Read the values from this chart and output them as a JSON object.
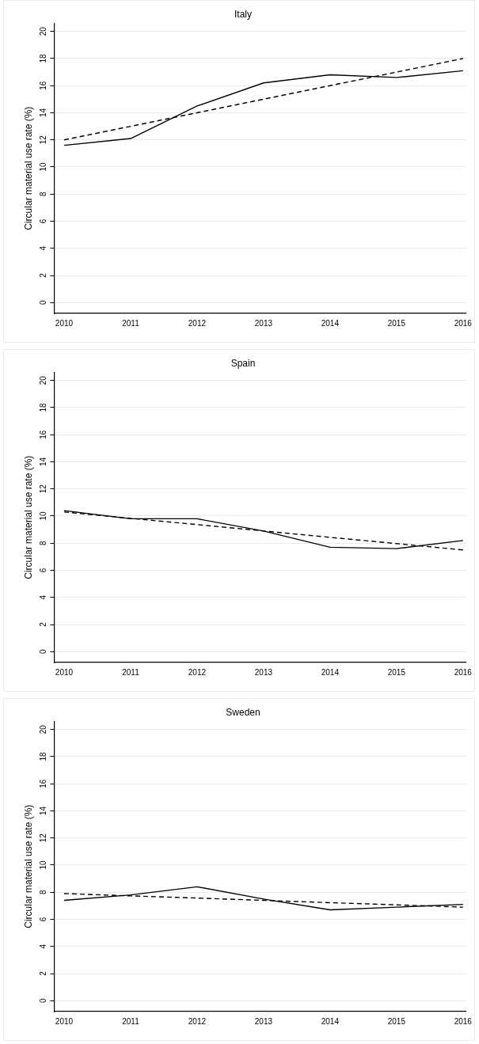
{
  "chart_data": [
    {
      "type": "line",
      "title": "Italy",
      "ylabel": "Circular material use rate (%)",
      "x": [
        2010,
        2011,
        2012,
        2013,
        2014,
        2015,
        2016
      ],
      "xlim": [
        2009.85,
        2016.05
      ],
      "xticks": [
        2010,
        2011,
        2012,
        2013,
        2014,
        2015,
        2016
      ],
      "ylim": [
        -0.8,
        20.6
      ],
      "yticks": [
        0,
        2,
        4,
        6,
        8,
        10,
        12,
        14,
        16,
        18,
        20
      ],
      "grid": "y",
      "marker": "none",
      "series": [
        {
          "color": "#000000",
          "line_style": "solid",
          "values": [
            11.6,
            12.1,
            14.5,
            16.2,
            16.8,
            16.6,
            17.1
          ]
        },
        {
          "color": "#000000",
          "line_style": "dashed",
          "values": [
            12,
            13,
            14,
            15,
            16,
            17,
            18
          ]
        }
      ]
    },
    {
      "type": "line",
      "title": "Spain",
      "ylabel": "Circular material use rate (%)",
      "x": [
        2010,
        2011,
        2012,
        2013,
        2014,
        2015,
        2016
      ],
      "xlim": [
        2009.85,
        2016.05
      ],
      "xticks": [
        2010,
        2011,
        2012,
        2013,
        2014,
        2015,
        2016
      ],
      "ylim": [
        -0.8,
        20.6
      ],
      "yticks": [
        0,
        2,
        4,
        6,
        8,
        10,
        12,
        14,
        16,
        18,
        20
      ],
      "grid": "y",
      "marker": "none",
      "series": [
        {
          "color": "#000000",
          "line_style": "solid",
          "values": [
            10.4,
            9.8,
            9.8,
            8.9,
            7.7,
            7.6,
            8.2
          ]
        },
        {
          "color": "#000000",
          "line_style": "dashed",
          "values": [
            10.3,
            9.83,
            9.37,
            8.9,
            8.43,
            7.97,
            7.5
          ]
        }
      ]
    },
    {
      "type": "line",
      "title": "Sweden",
      "ylabel": "Circular material use rate (%)",
      "x": [
        2010,
        2011,
        2012,
        2013,
        2014,
        2015,
        2016
      ],
      "xlim": [
        2009.85,
        2016.05
      ],
      "xticks": [
        2010,
        2011,
        2012,
        2013,
        2014,
        2015,
        2016
      ],
      "ylim": [
        -0.8,
        20.6
      ],
      "yticks": [
        0,
        2,
        4,
        6,
        8,
        10,
        12,
        14,
        16,
        18,
        20
      ],
      "grid": "y",
      "marker": "none",
      "series": [
        {
          "color": "#000000",
          "line_style": "solid",
          "values": [
            7.4,
            7.8,
            8.4,
            7.5,
            6.7,
            6.9,
            7.1
          ]
        },
        {
          "color": "#000000",
          "line_style": "dashed",
          "values": [
            7.9,
            7.73,
            7.57,
            7.4,
            7.23,
            7.07,
            6.9
          ]
        }
      ]
    }
  ]
}
